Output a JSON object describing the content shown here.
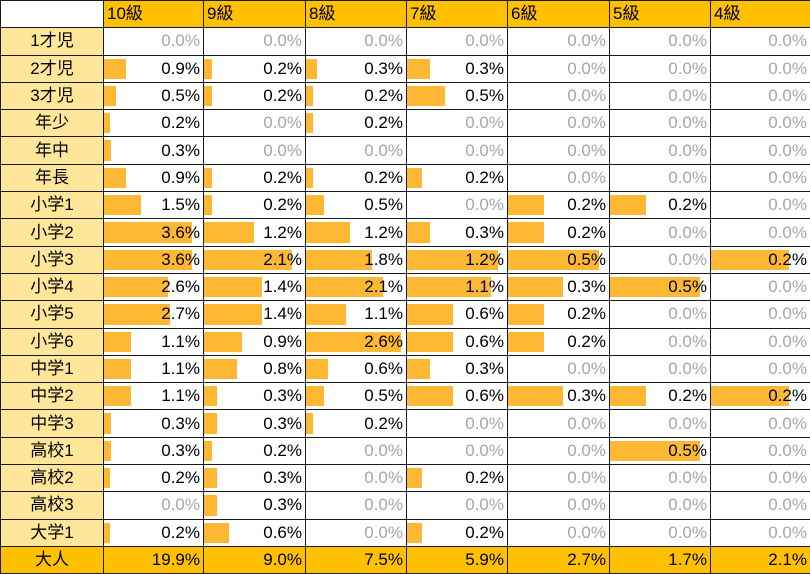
{
  "colors": {
    "header": "#ffc000",
    "row_header": "#ffe699",
    "bar": "#ffb834",
    "zero_text": "#a6a6a6"
  },
  "columns": [
    "10級",
    "9級",
    "8級",
    "7級",
    "6級",
    "5級",
    "4級"
  ],
  "rows": [
    {
      "label": "1才児",
      "values": [
        "0.0%",
        "0.0%",
        "0.0%",
        "0.0%",
        "0.0%",
        "0.0%",
        "0.0%"
      ]
    },
    {
      "label": "2才児",
      "values": [
        "0.9%",
        "0.2%",
        "0.3%",
        "0.3%",
        "0.0%",
        "0.0%",
        "0.0%"
      ]
    },
    {
      "label": "3才児",
      "values": [
        "0.5%",
        "0.2%",
        "0.2%",
        "0.5%",
        "0.0%",
        "0.0%",
        "0.0%"
      ]
    },
    {
      "label": "年少",
      "values": [
        "0.2%",
        "0.0%",
        "0.2%",
        "0.0%",
        "0.0%",
        "0.0%",
        "0.0%"
      ]
    },
    {
      "label": "年中",
      "values": [
        "0.3%",
        "0.0%",
        "0.0%",
        "0.0%",
        "0.0%",
        "0.0%",
        "0.0%"
      ]
    },
    {
      "label": "年長",
      "values": [
        "0.9%",
        "0.2%",
        "0.2%",
        "0.2%",
        "0.0%",
        "0.0%",
        "0.0%"
      ]
    },
    {
      "label": "小学1",
      "values": [
        "1.5%",
        "0.2%",
        "0.5%",
        "0.0%",
        "0.2%",
        "0.2%",
        "0.0%"
      ]
    },
    {
      "label": "小学2",
      "values": [
        "3.6%",
        "1.2%",
        "1.2%",
        "0.3%",
        "0.2%",
        "0.0%",
        "0.0%"
      ]
    },
    {
      "label": "小学3",
      "values": [
        "3.6%",
        "2.1%",
        "1.8%",
        "1.2%",
        "0.5%",
        "0.0%",
        "0.2%"
      ]
    },
    {
      "label": "小学4",
      "values": [
        "2.6%",
        "1.4%",
        "2.1%",
        "1.1%",
        "0.3%",
        "0.5%",
        "0.0%"
      ]
    },
    {
      "label": "小学5",
      "values": [
        "2.7%",
        "1.4%",
        "1.1%",
        "0.6%",
        "0.2%",
        "0.0%",
        "0.0%"
      ]
    },
    {
      "label": "小学6",
      "values": [
        "1.1%",
        "0.9%",
        "2.6%",
        "0.6%",
        "0.2%",
        "0.0%",
        "0.0%"
      ]
    },
    {
      "label": "中学1",
      "values": [
        "1.1%",
        "0.8%",
        "0.6%",
        "0.3%",
        "0.0%",
        "0.0%",
        "0.0%"
      ]
    },
    {
      "label": "中学2",
      "values": [
        "1.1%",
        "0.3%",
        "0.5%",
        "0.6%",
        "0.3%",
        "0.2%",
        "0.2%"
      ]
    },
    {
      "label": "中学3",
      "values": [
        "0.3%",
        "0.3%",
        "0.2%",
        "0.0%",
        "0.0%",
        "0.0%",
        "0.0%"
      ]
    },
    {
      "label": "高校1",
      "values": [
        "0.3%",
        "0.2%",
        "0.0%",
        "0.0%",
        "0.0%",
        "0.5%",
        "0.0%"
      ]
    },
    {
      "label": "高校2",
      "values": [
        "0.2%",
        "0.3%",
        "0.0%",
        "0.2%",
        "0.0%",
        "0.0%",
        "0.0%"
      ]
    },
    {
      "label": "高校3",
      "values": [
        "0.0%",
        "0.3%",
        "0.0%",
        "0.0%",
        "0.0%",
        "0.0%",
        "0.0%"
      ]
    },
    {
      "label": "大学1",
      "values": [
        "0.2%",
        "0.6%",
        "0.0%",
        "0.2%",
        "0.0%",
        "0.0%",
        "0.0%"
      ]
    }
  ],
  "total": {
    "label": "大人",
    "values": [
      "19.9%",
      "9.0%",
      "7.5%",
      "5.9%",
      "2.7%",
      "1.7%",
      "2.1%"
    ]
  },
  "bar_scale": {
    "10級": 4.0,
    "9級": 2.4,
    "8級": 2.7,
    "7級": 1.3,
    "6級": 0.55,
    "5級": 0.55,
    "4級": 0.25
  }
}
